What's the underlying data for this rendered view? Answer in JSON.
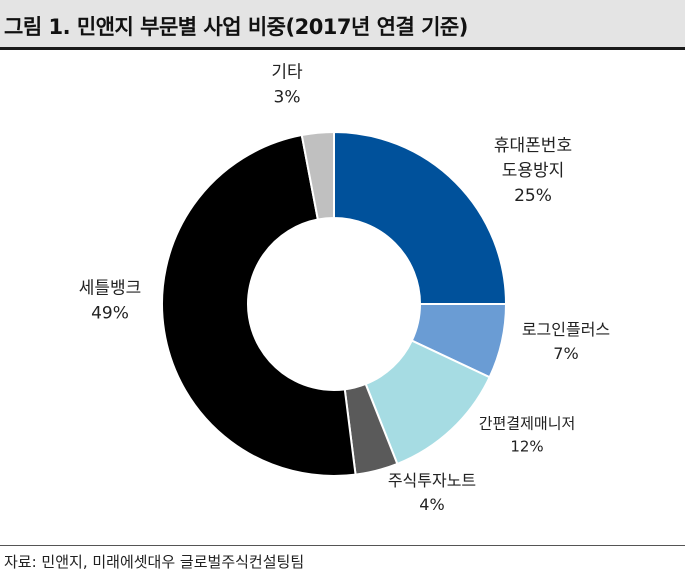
{
  "title": "그림 1. 민앤지 부문별 사업 비중(2017년 연결 기준)",
  "source": "자료: 민앤지, 미래에셋대우 글로벌주식컨설팅팀",
  "chart_data": {
    "type": "pie",
    "subtype": "donut",
    "title": "그림 1. 민앤지 부문별 사업 비중(2017년 연결 기준)",
    "unit": "%",
    "slices": [
      {
        "label": [
          "휴대폰번호",
          "도용방지"
        ],
        "value": 25,
        "value_label": "25%",
        "color": "#00519b"
      },
      {
        "label": [
          "로그인플러스"
        ],
        "value": 7,
        "value_label": "7%",
        "color": "#6a9cd4"
      },
      {
        "label": [
          "간편결제매니저"
        ],
        "value": 12,
        "value_label": "12%",
        "color": "#a6dce3"
      },
      {
        "label": [
          "주식투자노트"
        ],
        "value": 4,
        "value_label": "4%",
        "color": "#5a5a5a"
      },
      {
        "label": [
          "세틀뱅크"
        ],
        "value": 49,
        "value_label": "49%",
        "color": "#000000"
      },
      {
        "label": [
          "기타"
        ],
        "value": 3,
        "value_label": "3%",
        "color": "#c0c0c0"
      }
    ],
    "legend": "none"
  }
}
